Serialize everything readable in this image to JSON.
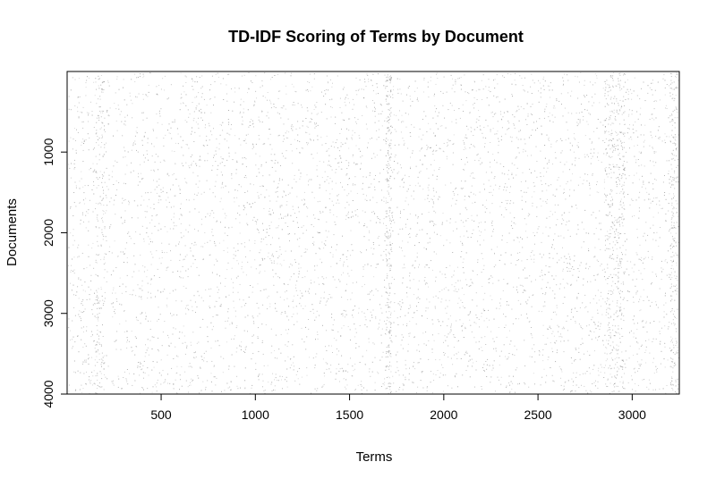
{
  "chart_data": {
    "type": "heatmap",
    "title": "TD-IDF Scoring of Terms by Document",
    "xlabel": "Terms",
    "ylabel": "Documents",
    "xlim": [
      1,
      3250
    ],
    "ylim": [
      4000,
      1
    ],
    "y_axis_inverted": true,
    "x_ticks": [
      500,
      1000,
      1500,
      2000,
      2500,
      3000
    ],
    "x_tick_labels": [
      "500",
      "1000",
      "1500",
      "2000",
      "2500",
      "3000"
    ],
    "y_ticks": [
      1000,
      2000,
      3000,
      4000
    ],
    "y_tick_labels": [
      "1000",
      "2000",
      "3000",
      "4000"
    ],
    "grid": false,
    "legend": "none",
    "cell_color": "#9a9a9a",
    "background_color": "#ffffff",
    "density": "very sparse; nonzero TF-IDF scores scattered across the matrix, denser vertical bands near terms ~1700 and ~2850-2950"
  }
}
